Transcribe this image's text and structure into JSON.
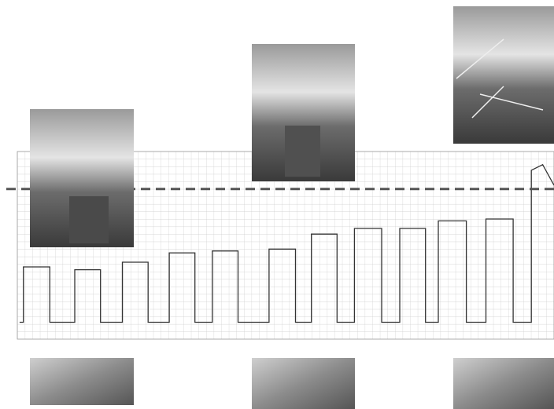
{
  "chart_data": {
    "type": "line",
    "x": [
      0.3,
      0.8,
      0.8,
      4.3,
      4.3,
      7.6,
      7.6,
      11.0,
      11.0,
      13.9,
      13.9,
      17.3,
      17.3,
      20.1,
      20.1,
      23.5,
      23.5,
      25.8,
      25.8,
      29.2,
      29.2,
      33.3,
      33.3,
      36.8,
      36.8,
      38.9,
      38.9,
      42.3,
      42.3,
      44.6,
      44.6,
      48.2,
      48.2,
      50.6,
      50.6,
      54.0,
      54.0,
      55.7,
      55.7,
      59.4,
      59.4,
      62.0,
      62.0,
      65.6,
      65.6,
      68.0,
      68.0,
      69.5,
      71.0
    ],
    "series": [
      {
        "color": "#333333",
        "values": [
          9,
          9,
          38.5,
          38.5,
          9,
          9,
          37,
          37,
          9,
          9,
          41,
          41,
          9,
          9,
          46,
          46,
          9,
          9,
          47,
          47,
          9,
          9,
          48,
          48,
          9,
          9,
          56,
          56,
          9,
          9,
          59,
          59,
          9,
          9,
          59,
          59,
          9,
          9,
          63,
          63,
          9,
          9,
          64,
          64,
          9,
          9,
          90,
          93,
          82
        ]
      }
    ],
    "threshold": 80,
    "threshold_color": "#555555",
    "xlim": [
      0,
      71
    ],
    "ylim": [
      0,
      100
    ],
    "grid": true
  }
}
